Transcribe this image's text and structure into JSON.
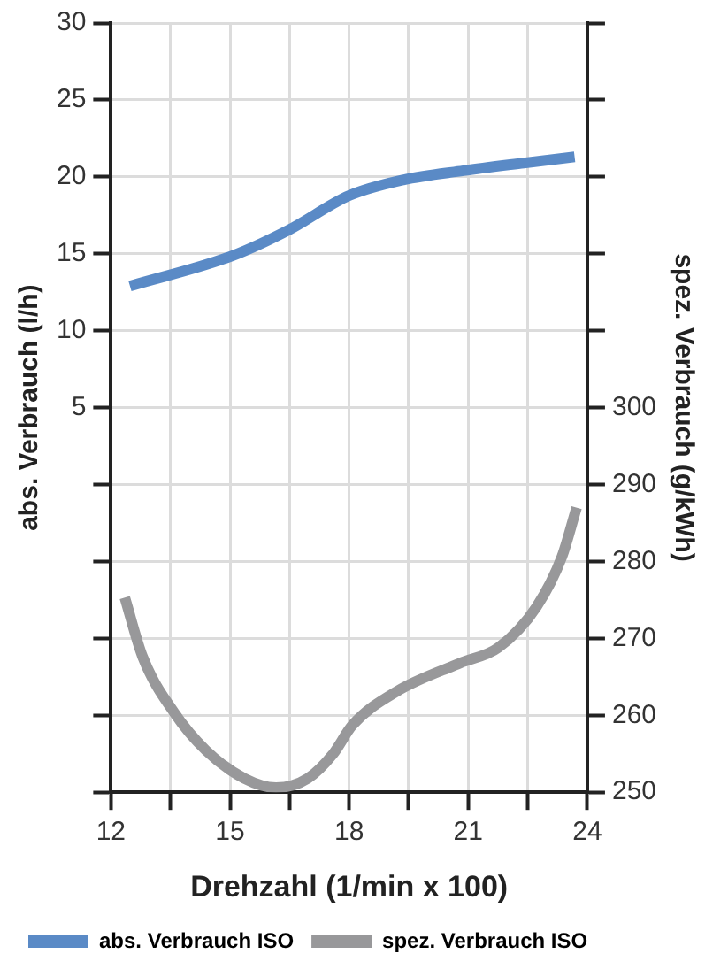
{
  "chart_data": {
    "type": "line",
    "xlabel": "Drehzahl (1/min x 100)",
    "ylabel": "abs. Verbrauch (l/h)",
    "y2label": "spez. Verbrauch (g/kWh)",
    "xlim": [
      12,
      24
    ],
    "xticks": [
      12,
      {
        "value": 13.5,
        "label": null
      },
      15,
      {
        "value": 16.5,
        "label": null
      },
      18,
      {
        "value": 19.5,
        "label": null
      },
      21,
      {
        "value": 22.5,
        "label": null
      },
      24
    ],
    "ylim": [
      -20,
      30
    ],
    "yticks": [
      {
        "value": -20,
        "label": null
      },
      {
        "value": -15,
        "label": null
      },
      {
        "value": -10,
        "label": null
      },
      {
        "value": -5,
        "label": null
      },
      {
        "value": 0,
        "label": null
      },
      5,
      10,
      15,
      20,
      25,
      30
    ],
    "y2lim": [
      250,
      350
    ],
    "y2ticks": [
      250,
      260,
      270,
      280,
      290,
      300,
      {
        "value": 310,
        "label": null
      },
      {
        "value": 320,
        "label": null
      },
      {
        "value": 330,
        "label": null
      },
      {
        "value": 340,
        "label": null
      },
      {
        "value": 350,
        "label": null
      }
    ],
    "grid": true,
    "legend": "bottom",
    "line_style": "solid",
    "series": [
      {
        "name": "abs. Verbrauch ISO",
        "color": "#5a8ac6",
        "x": [
          12.48,
          15.04,
          16.48,
          18.0,
          19.36,
          20.88,
          22.4,
          23.68
        ],
        "values": [
          12.9,
          14.85,
          16.55,
          18.78,
          19.8,
          20.4,
          20.9,
          21.3
        ]
      },
      {
        "name": "spez. Verbrauch ISO",
        "color": "#98989a",
        "axis": "y2",
        "x": [
          12.35,
          12.8,
          13.6,
          14.4,
          15.36,
          16.16,
          16.96,
          17.6,
          18.08,
          19.2,
          20.8,
          21.76,
          22.72,
          23.36,
          23.73
        ],
        "values": [
          275.3,
          267.6,
          260.3,
          255.4,
          251.8,
          250.6,
          251.8,
          255.0,
          258.7,
          263.1,
          266.8,
          268.8,
          274.1,
          280.6,
          287.0
        ]
      }
    ]
  }
}
